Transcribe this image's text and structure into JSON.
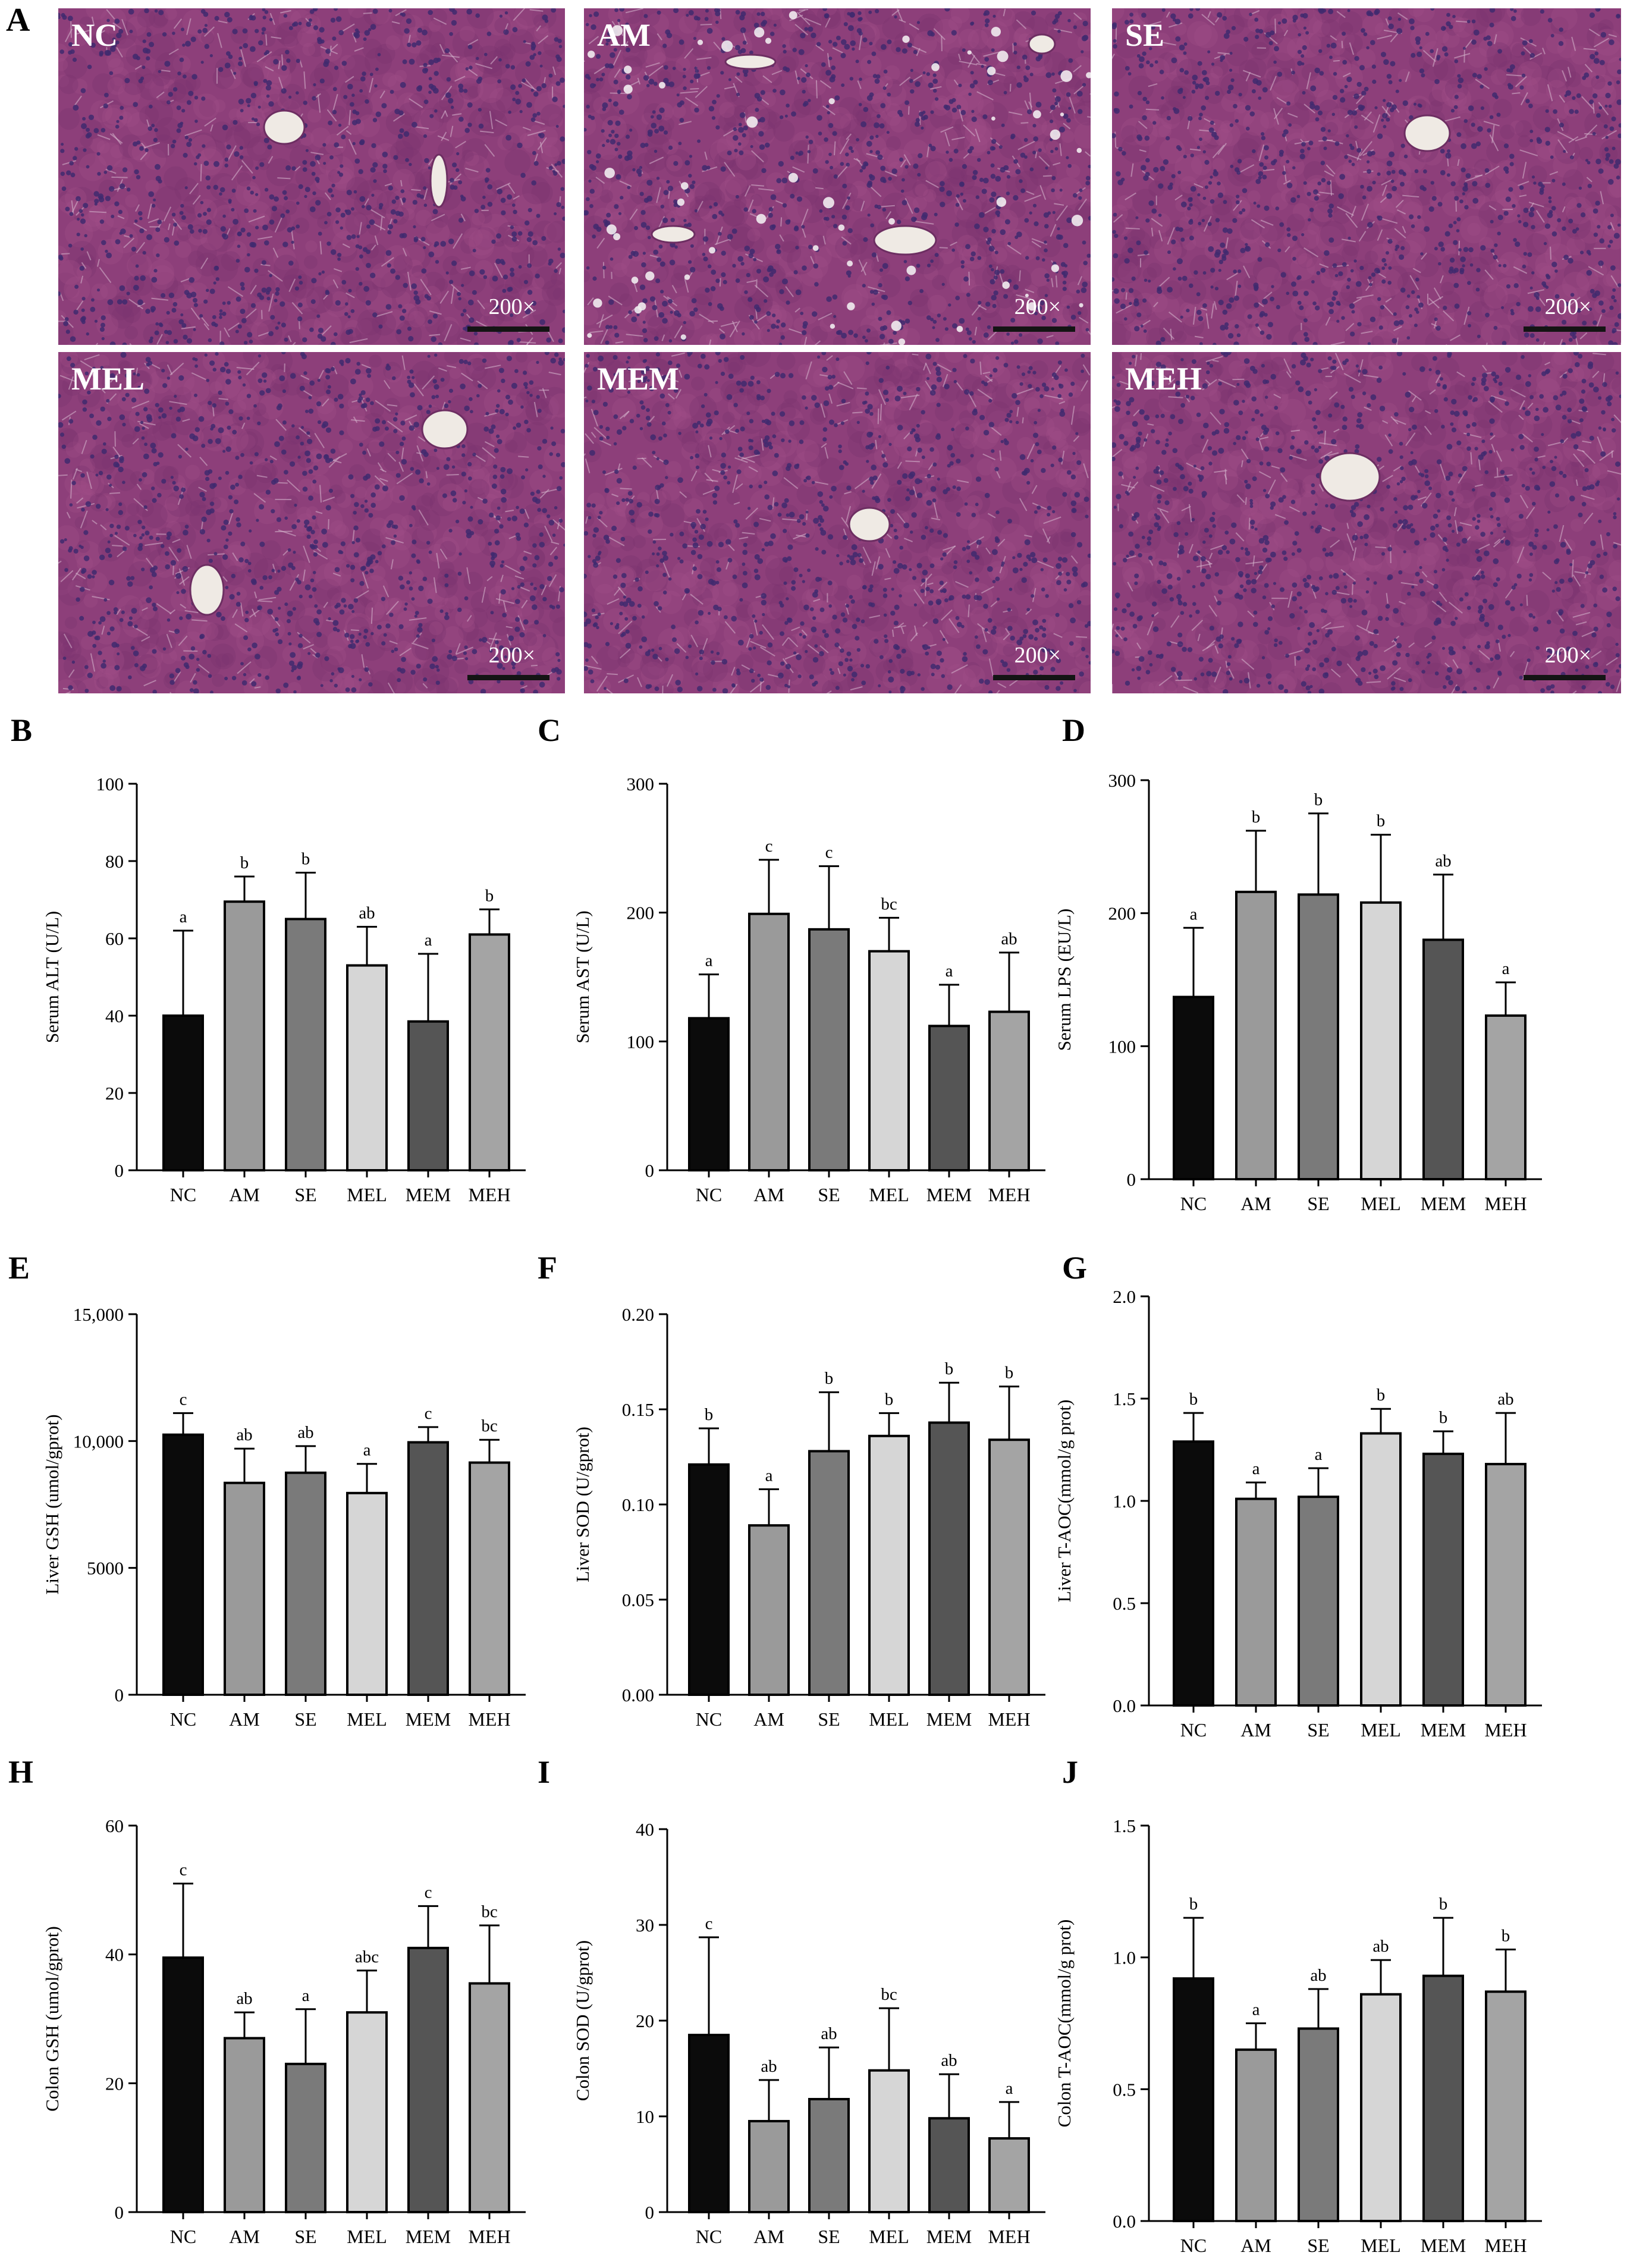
{
  "panel_a": {
    "letter": "A",
    "images": [
      {
        "label": "NC",
        "magnification": "200×"
      },
      {
        "label": "AM",
        "magnification": "200×"
      },
      {
        "label": "SE",
        "magnification": "200×"
      },
      {
        "label": "MEL",
        "magnification": "200×"
      },
      {
        "label": "MEM",
        "magnification": "200×"
      },
      {
        "label": "MEH",
        "magnification": "200×"
      }
    ]
  },
  "colors": {
    "bars": [
      "#0b0b0b",
      "#9a9a9a",
      "#7a7a7a",
      "#d6d6d6",
      "#555555",
      "#a4a4a4"
    ],
    "tissue_base": "#8d3f7a",
    "tissue_nuclei": "#3f2a6e",
    "vessel": "#efeae4"
  },
  "chart_data": [
    {
      "id": "B",
      "type": "bar",
      "ylabel": "Serum ALT (U/L)",
      "categories": [
        "NC",
        "AM",
        "SE",
        "MEL",
        "MEM",
        "MEH"
      ],
      "values": [
        40,
        69.5,
        65,
        53,
        38.5,
        61
      ],
      "errors": [
        22,
        6.5,
        12,
        10,
        17.5,
        6.5
      ],
      "letters": [
        "a",
        "b",
        "b",
        "ab",
        "a",
        "b"
      ],
      "ylim": [
        0,
        100
      ],
      "yticks": [
        "0",
        "20",
        "40",
        "60",
        "80",
        "100"
      ]
    },
    {
      "id": "C",
      "type": "bar",
      "ylabel": "Serum AST (U/L)",
      "categories": [
        "NC",
        "AM",
        "SE",
        "MEL",
        "MEM",
        "MEH"
      ],
      "values": [
        118,
        199,
        187,
        170,
        112,
        123
      ],
      "errors": [
        34,
        42,
        49,
        26,
        32,
        46
      ],
      "letters": [
        "a",
        "c",
        "c",
        "bc",
        "a",
        "ab"
      ],
      "ylim": [
        0,
        300
      ],
      "yticks": [
        "0",
        "100",
        "200",
        "300"
      ]
    },
    {
      "id": "D",
      "type": "bar",
      "ylabel": "Serum LPS (EU/L)",
      "categories": [
        "NC",
        "AM",
        "SE",
        "MEL",
        "MEM",
        "MEH"
      ],
      "values": [
        137,
        216,
        214,
        208,
        180,
        123
      ],
      "errors": [
        52,
        46,
        61,
        51,
        49,
        25
      ],
      "letters": [
        "a",
        "b",
        "b",
        "b",
        "ab",
        "a"
      ],
      "ylim": [
        0,
        300
      ],
      "yticks": [
        "0",
        "100",
        "200",
        "300"
      ]
    },
    {
      "id": "E",
      "type": "bar",
      "ylabel": "Liver GSH (umol/gprot)",
      "categories": [
        "NC",
        "AM",
        "SE",
        "MEL",
        "MEM",
        "MEH"
      ],
      "values": [
        10250,
        8350,
        8750,
        7950,
        9950,
        9150
      ],
      "errors": [
        850,
        1350,
        1050,
        1150,
        600,
        900
      ],
      "letters": [
        "c",
        "ab",
        "ab",
        "a",
        "c",
        "bc"
      ],
      "ylim": [
        0,
        15000
      ],
      "yticks": [
        "0",
        "5000",
        "10,000",
        "15,000"
      ]
    },
    {
      "id": "F",
      "type": "bar",
      "ylabel": "Liver SOD (U/gprot)",
      "categories": [
        "NC",
        "AM",
        "SE",
        "MEL",
        "MEM",
        "MEH"
      ],
      "values": [
        0.121,
        0.089,
        0.128,
        0.136,
        0.143,
        0.134
      ],
      "errors": [
        0.019,
        0.019,
        0.031,
        0.012,
        0.021,
        0.028
      ],
      "letters": [
        "b",
        "a",
        "b",
        "b",
        "b",
        "b"
      ],
      "ylim": [
        0,
        0.2
      ],
      "yticks": [
        "0.00",
        "0.05",
        "0.10",
        "0.15",
        "0.20"
      ]
    },
    {
      "id": "G",
      "type": "bar",
      "ylabel": "Liver T-AOC(mmol/g prot)",
      "categories": [
        "NC",
        "AM",
        "SE",
        "MEL",
        "MEM",
        "MEH"
      ],
      "values": [
        1.29,
        1.01,
        1.02,
        1.33,
        1.23,
        1.18
      ],
      "errors": [
        0.14,
        0.08,
        0.14,
        0.12,
        0.11,
        0.25
      ],
      "letters": [
        "b",
        "a",
        "a",
        "b",
        "b",
        "ab"
      ],
      "ylim": [
        0,
        2.0
      ],
      "yticks": [
        "0.0",
        "0.5",
        "1.0",
        "1.5",
        "2.0"
      ]
    },
    {
      "id": "H",
      "type": "bar",
      "ylabel": "Colon GSH (umol/gprot)",
      "categories": [
        "NC",
        "AM",
        "SE",
        "MEL",
        "MEM",
        "MEH"
      ],
      "values": [
        39.5,
        27,
        23,
        31,
        41,
        35.5
      ],
      "errors": [
        11.5,
        4,
        8.5,
        6.5,
        6.5,
        9
      ],
      "letters": [
        "c",
        "ab",
        "a",
        "abc",
        "c",
        "bc"
      ],
      "ylim": [
        0,
        60
      ],
      "yticks": [
        "0",
        "20",
        "40",
        "60"
      ]
    },
    {
      "id": "I",
      "type": "bar",
      "ylabel": "Colon SOD (U/gprot)",
      "categories": [
        "NC",
        "AM",
        "SE",
        "MEL",
        "MEM",
        "MEH"
      ],
      "values": [
        18.5,
        9.5,
        11.8,
        14.8,
        9.8,
        7.7
      ],
      "errors": [
        10.2,
        4.3,
        5.4,
        6.5,
        4.6,
        3.8
      ],
      "letters": [
        "c",
        "ab",
        "ab",
        "bc",
        "ab",
        "a"
      ],
      "ylim": [
        0,
        40
      ],
      "yticks": [
        "0",
        "10",
        "20",
        "30",
        "40"
      ]
    },
    {
      "id": "J",
      "type": "bar",
      "ylabel": "Colon T-AOC(mmol/g prot)",
      "categories": [
        "NC",
        "AM",
        "SE",
        "MEL",
        "MEM",
        "MEH"
      ],
      "values": [
        0.92,
        0.65,
        0.73,
        0.86,
        0.93,
        0.87
      ],
      "errors": [
        0.23,
        0.1,
        0.15,
        0.13,
        0.22,
        0.16
      ],
      "letters": [
        "b",
        "a",
        "ab",
        "ab",
        "b",
        "b"
      ],
      "ylim": [
        0,
        1.5
      ],
      "yticks": [
        "0.0",
        "0.5",
        "1.0",
        "1.5"
      ]
    }
  ]
}
